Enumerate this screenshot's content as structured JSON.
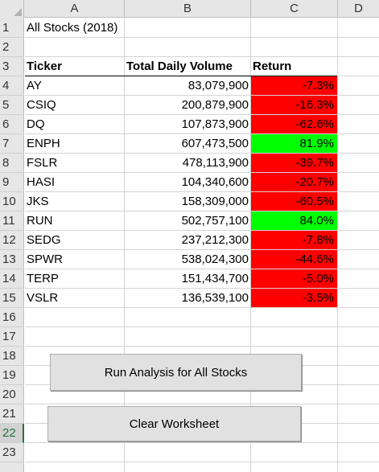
{
  "columns": [
    "A",
    "B",
    "C",
    "D"
  ],
  "rows": [
    "1",
    "2",
    "3",
    "4",
    "5",
    "6",
    "7",
    "8",
    "9",
    "10",
    "11",
    "12",
    "13",
    "14",
    "15",
    "16",
    "17",
    "18",
    "19",
    "20",
    "21",
    "22",
    "23"
  ],
  "selected_row": "22",
  "sheet": {
    "title": "All Stocks (2018)",
    "headers": {
      "ticker": "Ticker",
      "volume": "Total Daily Volume",
      "return": "Return"
    },
    "data": [
      {
        "ticker": "AY",
        "volume": "83,079,900",
        "return": "-7.3%",
        "status": "negative"
      },
      {
        "ticker": "CSIQ",
        "volume": "200,879,900",
        "return": "-16.3%",
        "status": "negative"
      },
      {
        "ticker": "DQ",
        "volume": "107,873,900",
        "return": "-62.6%",
        "status": "negative"
      },
      {
        "ticker": "ENPH",
        "volume": "607,473,500",
        "return": "81.9%",
        "status": "positive"
      },
      {
        "ticker": "FSLR",
        "volume": "478,113,900",
        "return": "-39.7%",
        "status": "negative"
      },
      {
        "ticker": "HASI",
        "volume": "104,340,600",
        "return": "-20.7%",
        "status": "negative"
      },
      {
        "ticker": "JKS",
        "volume": "158,309,000",
        "return": "-60.5%",
        "status": "negative"
      },
      {
        "ticker": "RUN",
        "volume": "502,757,100",
        "return": "84.0%",
        "status": "positive"
      },
      {
        "ticker": "SEDG",
        "volume": "237,212,300",
        "return": "-7.8%",
        "status": "negative"
      },
      {
        "ticker": "SPWR",
        "volume": "538,024,300",
        "return": "-44.6%",
        "status": "negative"
      },
      {
        "ticker": "TERP",
        "volume": "151,434,700",
        "return": "-5.0%",
        "status": "negative"
      },
      {
        "ticker": "VSLR",
        "volume": "136,539,100",
        "return": "-3.5%",
        "status": "negative"
      }
    ]
  },
  "buttons": {
    "run_analysis": "Run Analysis for All Stocks",
    "clear": "Clear Worksheet"
  },
  "colors": {
    "negative_fill": "#ff0000",
    "positive_fill": "#00ff00",
    "accent": "#217346"
  }
}
